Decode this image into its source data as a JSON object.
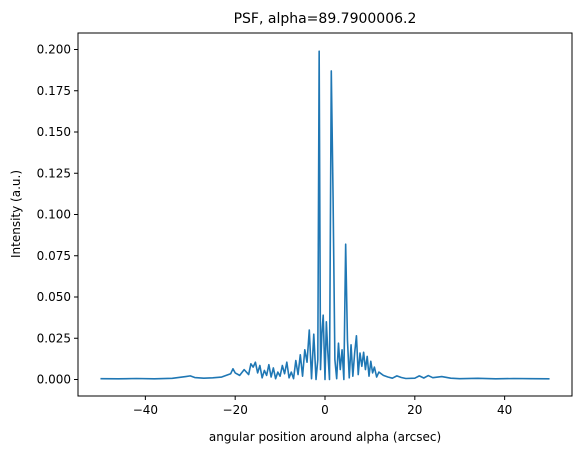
{
  "chart_data": {
    "type": "line",
    "title": "PSF, alpha=89.7900006.2",
    "xlabel": "angular position around alpha (arcsec)",
    "ylabel": "Intensity (a.u.)",
    "xlim": [
      -55,
      55
    ],
    "ylim": [
      -0.01,
      0.21
    ],
    "xticks": [
      -40,
      -20,
      0,
      20,
      40
    ],
    "xtick_labels": [
      "−40",
      "−20",
      "0",
      "20",
      "40"
    ],
    "yticks": [
      0.0,
      0.025,
      0.05,
      0.075,
      0.1,
      0.125,
      0.15,
      0.175,
      0.2
    ],
    "ytick_labels": [
      "0.000",
      "0.025",
      "0.050",
      "0.075",
      "0.100",
      "0.125",
      "0.150",
      "0.175",
      "0.200"
    ],
    "grid": false,
    "series": [
      {
        "color": "#1f77b4",
        "x": [
          -50,
          -46,
          -42,
          -38,
          -34,
          -31,
          -30,
          -29,
          -27,
          -25,
          -23,
          -21,
          -20.5,
          -20,
          -19,
          -18,
          -17,
          -16.5,
          -16,
          -15.5,
          -15,
          -14.5,
          -14,
          -13.5,
          -13,
          -12.5,
          -12,
          -11.5,
          -11,
          -10.5,
          -10,
          -9.5,
          -9,
          -8.5,
          -8,
          -7.5,
          -7,
          -6.5,
          -6,
          -5.5,
          -5,
          -4.5,
          -4,
          -3.5,
          -3,
          -2.5,
          -2,
          -1.6,
          -1.3,
          -1,
          -0.7,
          -0.4,
          0,
          0.3,
          0.6,
          1,
          1.4,
          1.8,
          2.2,
          2.6,
          3,
          3.4,
          3.8,
          4.2,
          4.6,
          5,
          5.4,
          5.8,
          6.2,
          6.6,
          7,
          7.4,
          7.8,
          8.2,
          8.6,
          9,
          9.4,
          9.8,
          10.2,
          10.6,
          11,
          11.5,
          12,
          13,
          14,
          15,
          16,
          17,
          18,
          20,
          21,
          22,
          23,
          24,
          26,
          28,
          30,
          34,
          38,
          42,
          46,
          50
        ],
        "y": [
          0.0005,
          0.0004,
          0.0006,
          0.0004,
          0.0007,
          0.0018,
          0.0022,
          0.0012,
          0.0008,
          0.001,
          0.0015,
          0.0035,
          0.0065,
          0.004,
          0.0025,
          0.006,
          0.003,
          0.0095,
          0.0075,
          0.0105,
          0.004,
          0.0085,
          0.001,
          0.0055,
          0.0025,
          0.009,
          0.0015,
          0.007,
          0.0005,
          0.0045,
          0.002,
          0.0085,
          0.0035,
          0.0105,
          0.001,
          0.0045,
          0.0005,
          0.0115,
          0.003,
          0.015,
          0.002,
          0.018,
          0.0105,
          0.03,
          0.0005,
          0.0275,
          0.0,
          0.012,
          0.199,
          0.006,
          0.028,
          0.039,
          0.0,
          0.035,
          0.018,
          0.0,
          0.187,
          0.11,
          0.012,
          0.0005,
          0.022,
          0.006,
          0.018,
          0.0,
          0.082,
          0.024,
          0.001,
          0.021,
          0.002,
          0.016,
          0.0265,
          0.003,
          0.016,
          0.008,
          0.0165,
          0.006,
          0.014,
          0.002,
          0.011,
          0.004,
          0.0075,
          0.0015,
          0.0045,
          0.0025,
          0.0015,
          0.0008,
          0.0022,
          0.0012,
          0.0006,
          0.0008,
          0.0022,
          0.0009,
          0.0024,
          0.0011,
          0.0018,
          0.0008,
          0.0005,
          0.0007,
          0.0004,
          0.0006,
          0.0005,
          0.0004
        ]
      }
    ]
  }
}
